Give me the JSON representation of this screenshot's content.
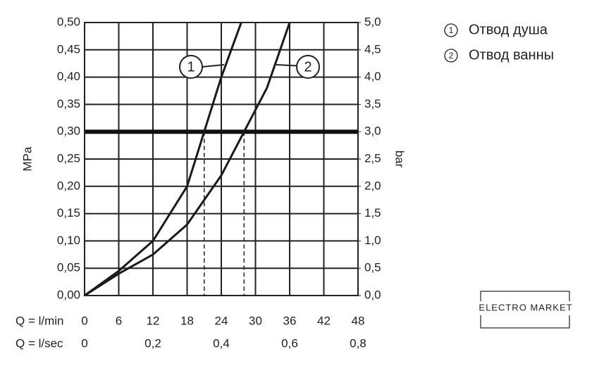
{
  "chart_data": {
    "type": "line",
    "y_label": "MPa",
    "y2_label": "bar",
    "x_label": "Q = l/min",
    "x2_label": "Q = l/sec",
    "xlim": [
      0,
      48
    ],
    "xticks": [
      0,
      6,
      12,
      18,
      24,
      30,
      36,
      42,
      48
    ],
    "x2lim": [
      0,
      0.8
    ],
    "x2ticks": [
      {
        "value": 0,
        "label": "0"
      },
      {
        "value": 0.2,
        "label": "0,2"
      },
      {
        "value": 0.4,
        "label": "0,4"
      },
      {
        "value": 0.6,
        "label": "0,6"
      },
      {
        "value": 0.8,
        "label": "0,8"
      }
    ],
    "ylim": [
      0,
      0.5
    ],
    "yticks": [
      {
        "value": 0,
        "label": "0,00"
      },
      {
        "value": 0.05,
        "label": "0,05"
      },
      {
        "value": 0.1,
        "label": "0,10"
      },
      {
        "value": 0.15,
        "label": "0,15"
      },
      {
        "value": 0.2,
        "label": "0,20"
      },
      {
        "value": 0.25,
        "label": "0,25"
      },
      {
        "value": 0.3,
        "label": "0,30"
      },
      {
        "value": 0.35,
        "label": "0,35"
      },
      {
        "value": 0.4,
        "label": "0,40"
      },
      {
        "value": 0.45,
        "label": "0,45"
      },
      {
        "value": 0.5,
        "label": "0,50"
      }
    ],
    "y2lim": [
      0,
      5
    ],
    "y2ticks": [
      {
        "value": 0,
        "label": "0,0"
      },
      {
        "value": 0.5,
        "label": "0,5"
      },
      {
        "value": 1,
        "label": "1,0"
      },
      {
        "value": 1.5,
        "label": "1,5"
      },
      {
        "value": 2,
        "label": "2,0"
      },
      {
        "value": 2.5,
        "label": "2,5"
      },
      {
        "value": 3,
        "label": "3,0"
      },
      {
        "value": 3.5,
        "label": "3,5"
      },
      {
        "value": 4,
        "label": "4,0"
      },
      {
        "value": 4.5,
        "label": "4,5"
      },
      {
        "value": 5,
        "label": "5,0"
      }
    ],
    "grid": true,
    "reference_line": 0.3,
    "drop_lines": [
      21,
      28
    ],
    "series": [
      {
        "name": "Отвод душа",
        "label": "1",
        "color": "#1a1a1a",
        "x": [
          0,
          6,
          12,
          18,
          21,
          24,
          27.5
        ],
        "values": [
          0,
          0.045,
          0.1,
          0.2,
          0.3,
          0.4,
          0.5
        ]
      },
      {
        "name": "Отвод ванны",
        "label": "2",
        "color": "#1a1a1a",
        "x": [
          0,
          6,
          12,
          18,
          24,
          28,
          32,
          36
        ],
        "values": [
          0,
          0.04,
          0.075,
          0.13,
          0.22,
          0.3,
          0.38,
          0.5
        ]
      }
    ],
    "watermark": "ELECTRO MARKET"
  }
}
